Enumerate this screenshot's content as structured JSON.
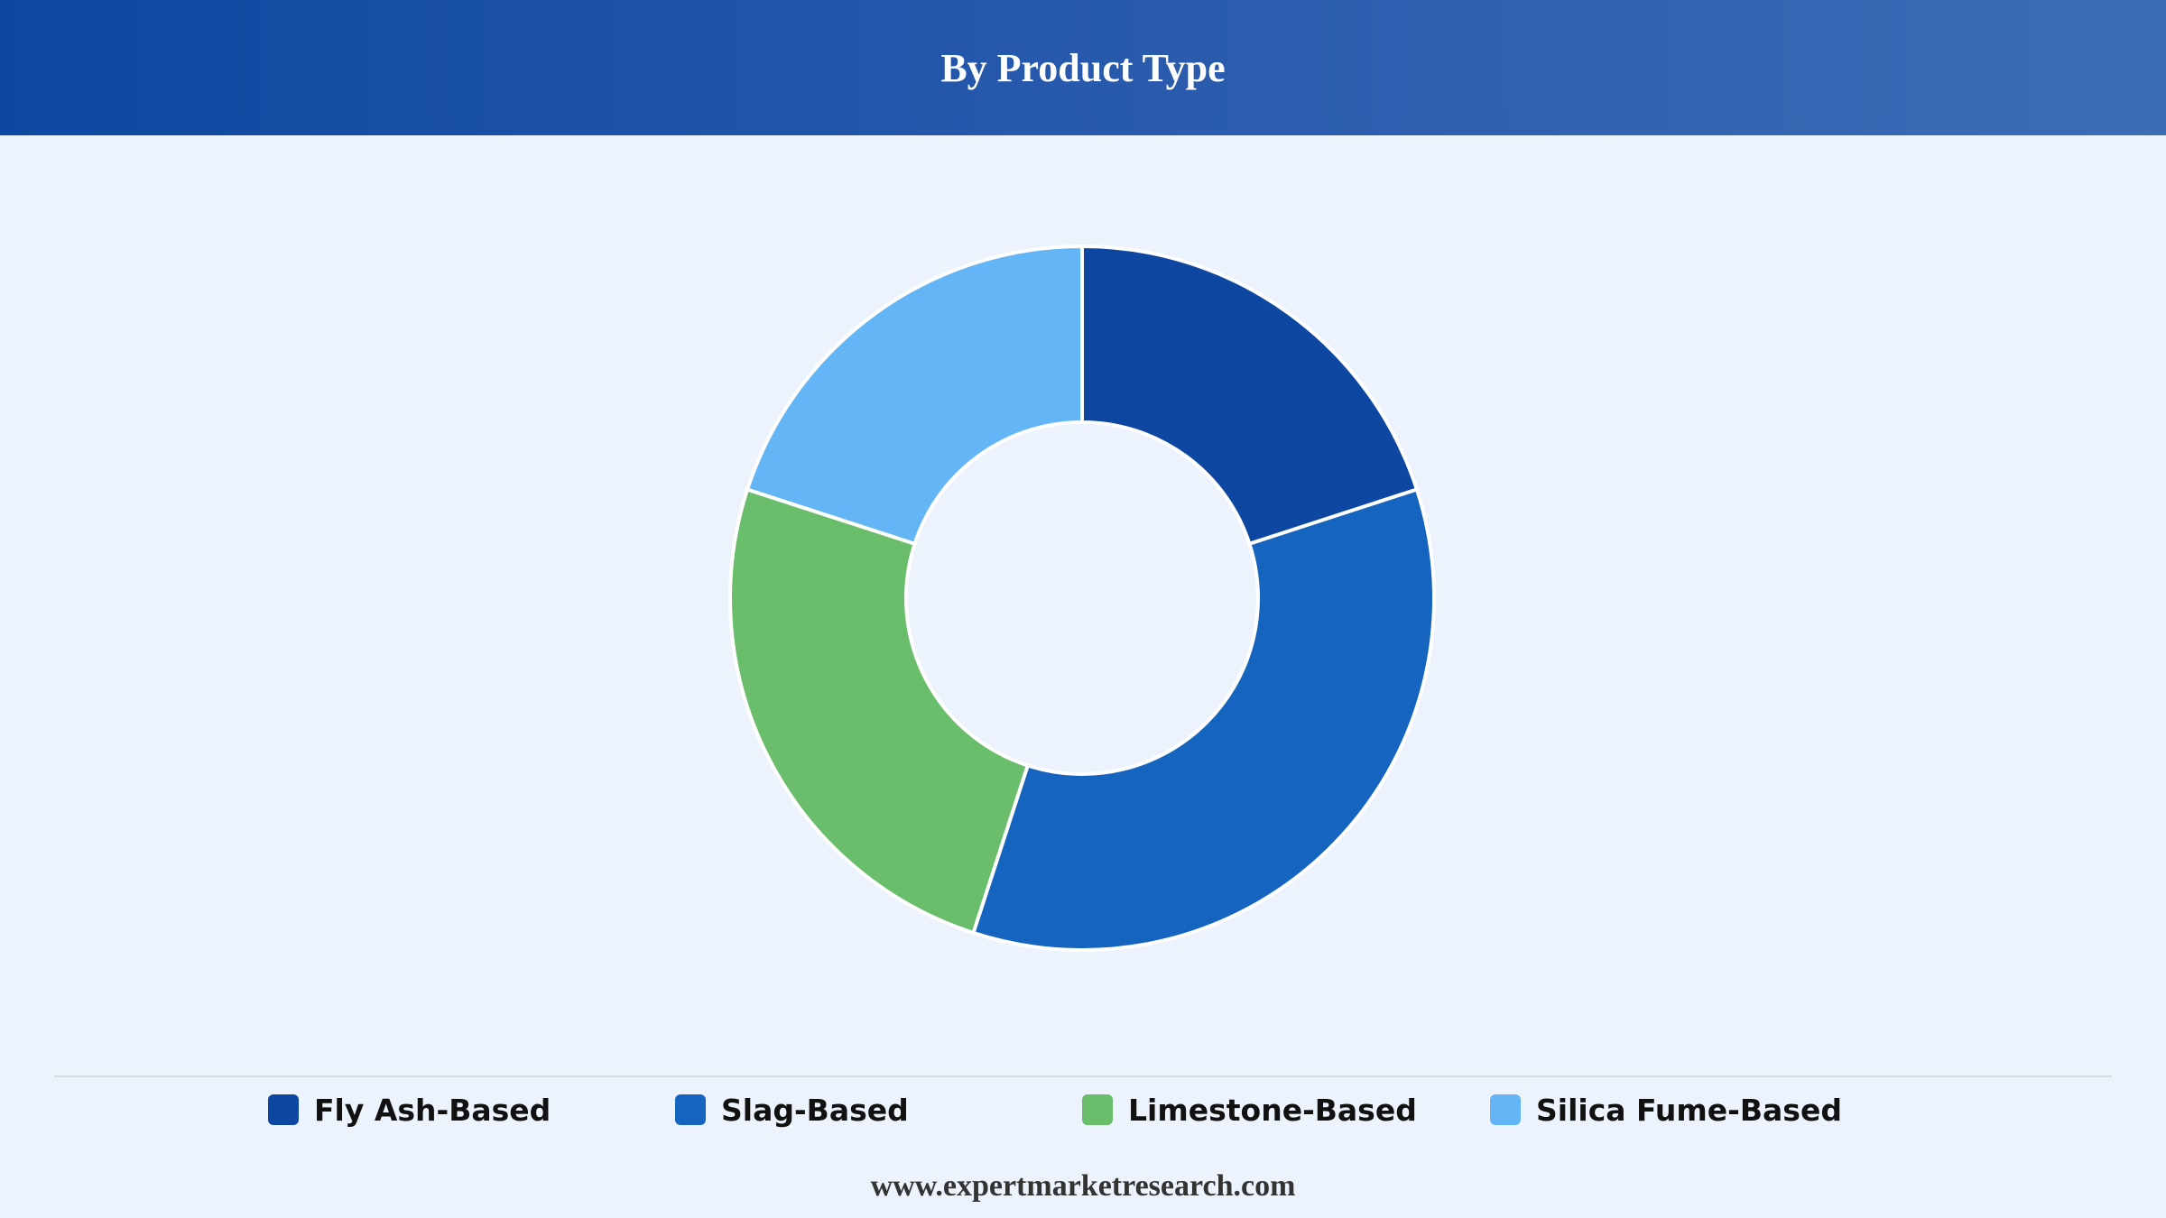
{
  "chart_data": {
    "type": "pie",
    "variant": "donut",
    "title": "By Product Type",
    "categories": [
      "Fly Ash-Based",
      "Slag-Based",
      "Limestone-Based",
      "Silica Fume-Based"
    ],
    "values": [
      20,
      35,
      25,
      20
    ],
    "colors": [
      "#0d47a1",
      "#1565c0",
      "#6abd6a",
      "#64b5f6"
    ],
    "legend_position": "bottom"
  },
  "footer": {
    "source": "www.expertmarketresearch.com"
  }
}
